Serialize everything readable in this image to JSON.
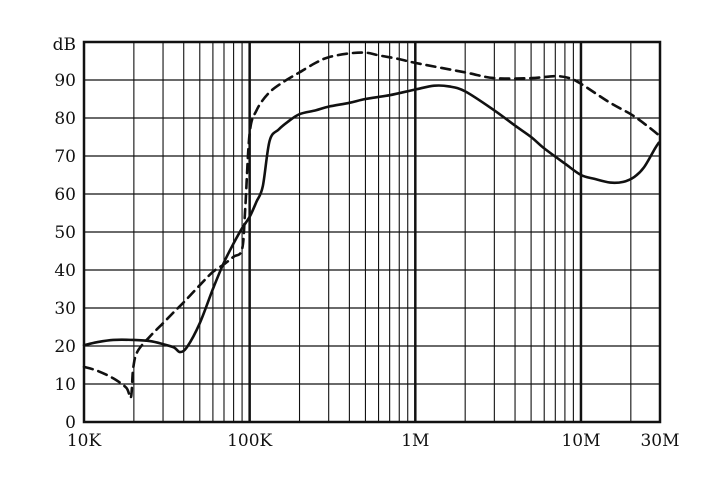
{
  "chart_data": {
    "type": "line",
    "title": "",
    "xlabel": "",
    "ylabel": "dB",
    "x_scale": "log",
    "xlim": [
      10000,
      30000000
    ],
    "ylim": [
      0,
      100
    ],
    "grid": true,
    "legend": "none",
    "y_ticks": [
      0,
      10,
      20,
      30,
      40,
      50,
      60,
      70,
      80,
      90
    ],
    "x_tick_labels": [
      {
        "value": 10000,
        "label": "10K"
      },
      {
        "value": 100000,
        "label": "100K"
      },
      {
        "value": 1000000,
        "label": "1M"
      },
      {
        "value": 10000000,
        "label": "10M"
      },
      {
        "value": 30000000,
        "label": "30M"
      }
    ],
    "series": [
      {
        "style": "solid",
        "color": "#111111",
        "points": [
          [
            10000,
            20.2
          ],
          [
            12000,
            21
          ],
          [
            15000,
            21.6
          ],
          [
            20000,
            21.6
          ],
          [
            25000,
            21.3
          ],
          [
            30000,
            20.5
          ],
          [
            35000,
            19.6
          ],
          [
            38000,
            18.4
          ],
          [
            42000,
            19.8
          ],
          [
            50000,
            26
          ],
          [
            60000,
            35
          ],
          [
            70000,
            42
          ],
          [
            80000,
            47
          ],
          [
            90000,
            51
          ],
          [
            100000,
            54
          ],
          [
            110000,
            58
          ],
          [
            120000,
            62
          ],
          [
            132000,
            74
          ],
          [
            150000,
            77
          ],
          [
            170000,
            79
          ],
          [
            200000,
            81
          ],
          [
            250000,
            82
          ],
          [
            300000,
            83
          ],
          [
            400000,
            84
          ],
          [
            500000,
            85
          ],
          [
            700000,
            86
          ],
          [
            1000000,
            87.5
          ],
          [
            1300000,
            88.5
          ],
          [
            1600000,
            88.3
          ],
          [
            2000000,
            87
          ],
          [
            3000000,
            82
          ],
          [
            4000000,
            78
          ],
          [
            5000000,
            75
          ],
          [
            6000000,
            72
          ],
          [
            8000000,
            68
          ],
          [
            10000000,
            65
          ],
          [
            12000000,
            64
          ],
          [
            15000000,
            63
          ],
          [
            18000000,
            63.2
          ],
          [
            21000000,
            64.5
          ],
          [
            24000000,
            67
          ],
          [
            28000000,
            72
          ],
          [
            29500000,
            73.5
          ]
        ]
      },
      {
        "style": "dashed",
        "color": "#111111",
        "points": [
          [
            10000,
            14.5
          ],
          [
            12000,
            13.5
          ],
          [
            15000,
            11.5
          ],
          [
            18000,
            9
          ],
          [
            19200,
            6.5
          ],
          [
            19800,
            14
          ],
          [
            21000,
            18.5
          ],
          [
            25000,
            22.5
          ],
          [
            30000,
            26
          ],
          [
            35000,
            29
          ],
          [
            40000,
            31.5
          ],
          [
            50000,
            36
          ],
          [
            60000,
            39.5
          ],
          [
            70000,
            41.5
          ],
          [
            80000,
            43.5
          ],
          [
            90000,
            45.5
          ],
          [
            94000,
            56
          ],
          [
            100000,
            76
          ],
          [
            110000,
            82
          ],
          [
            130000,
            86.5
          ],
          [
            160000,
            89.5
          ],
          [
            200000,
            92
          ],
          [
            250000,
            94.5
          ],
          [
            300000,
            96
          ],
          [
            400000,
            97
          ],
          [
            500000,
            97.2
          ],
          [
            600000,
            96.5
          ],
          [
            800000,
            95.5
          ],
          [
            1000000,
            94.5
          ],
          [
            2000000,
            92
          ],
          [
            3000000,
            90.5
          ],
          [
            5000000,
            90.5
          ],
          [
            7000000,
            91
          ],
          [
            8500000,
            90.5
          ],
          [
            10000000,
            89
          ],
          [
            15000000,
            84
          ],
          [
            20000000,
            81
          ],
          [
            25000000,
            78
          ],
          [
            29500000,
            75.5
          ]
        ]
      }
    ]
  }
}
